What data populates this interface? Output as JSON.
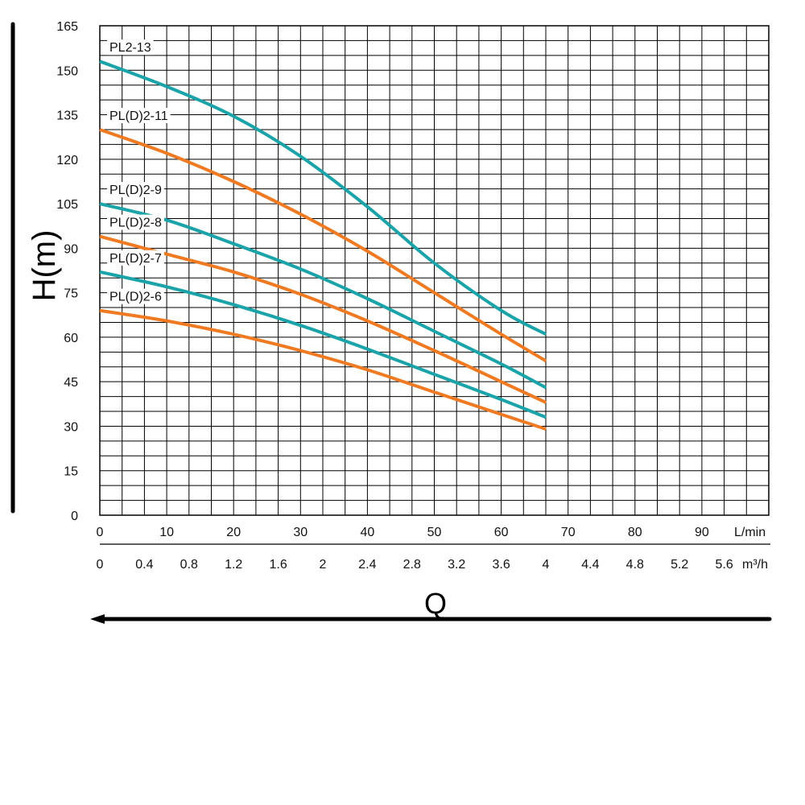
{
  "chart_data": {
    "type": "line",
    "title": "",
    "ylabel": "H(m)",
    "xlabel": "Q",
    "x_unit_primary": "L/min",
    "x_unit_secondary": "m³/h",
    "ylim": [
      0,
      165
    ],
    "xlim": [
      0,
      100
    ],
    "grid": true,
    "y_ticks": [
      0,
      15,
      30,
      45,
      60,
      75,
      90,
      105,
      120,
      135,
      150,
      165
    ],
    "x_ticks_primary": [
      0,
      10,
      20,
      30,
      40,
      50,
      60,
      70,
      80,
      90
    ],
    "x_ticks_secondary": [
      "0",
      "0.4",
      "0.8",
      "1.2",
      "1.6",
      "2",
      "2.4",
      "2.8",
      "3.2",
      "3.6",
      "4",
      "4.4",
      "4.8",
      "5.2",
      "5.6"
    ],
    "colors": {
      "teal": "#1aa3a8",
      "orange": "#f07a22"
    },
    "series": [
      {
        "name": "PL2-13",
        "color": "#1aa3a8",
        "x": [
          0,
          10,
          20,
          30,
          40,
          50,
          60,
          66.7
        ],
        "y": [
          153,
          144.5,
          134.5,
          121,
          104,
          85,
          69,
          61
        ]
      },
      {
        "name": "PL(D)2-11",
        "color": "#f07a22",
        "x": [
          0,
          10,
          20,
          30,
          40,
          50,
          60,
          66.7
        ],
        "y": [
          130,
          122,
          112.5,
          101.5,
          89,
          75,
          61,
          52
        ]
      },
      {
        "name": "PL(D)2-9",
        "color": "#1aa3a8",
        "x": [
          0,
          10,
          20,
          30,
          40,
          50,
          60,
          66.7
        ],
        "y": [
          105,
          99.5,
          91.5,
          83,
          73,
          62,
          51,
          43
        ]
      },
      {
        "name": "PL(D)2-8",
        "color": "#f07a22",
        "x": [
          0,
          10,
          20,
          30,
          40,
          50,
          60,
          66.7
        ],
        "y": [
          94,
          88,
          82,
          74.5,
          65.5,
          55.5,
          45,
          38
        ]
      },
      {
        "name": "PL(D)2-7",
        "color": "#1aa3a8",
        "x": [
          0,
          10,
          20,
          30,
          40,
          50,
          60,
          66.7
        ],
        "y": [
          82,
          77,
          71,
          64,
          56,
          47.5,
          39,
          33
        ]
      },
      {
        "name": "PL(D)2-6",
        "color": "#f07a22",
        "x": [
          0,
          10,
          20,
          30,
          40,
          50,
          60,
          66.7
        ],
        "y": [
          69,
          65.5,
          61,
          55.5,
          49,
          41.5,
          34,
          29
        ]
      }
    ]
  }
}
